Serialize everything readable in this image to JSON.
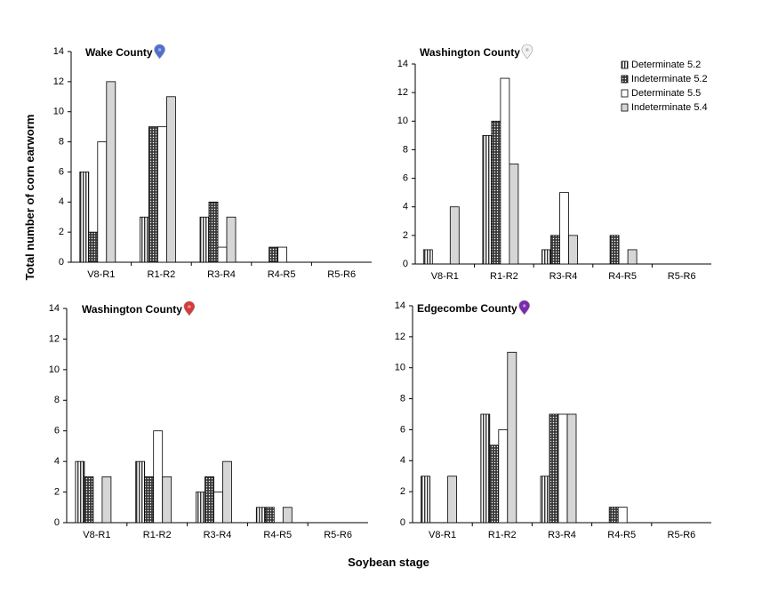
{
  "figure": {
    "ylabel": "Total number of corn earworm",
    "xlabel": "Soybean stage"
  },
  "colors": {
    "pin_blue": "#4f6fd0",
    "pin_white": "#f2f2f2",
    "pin_red": "#d83a3a",
    "pin_purple": "#7a2bb0"
  },
  "chart_data": [
    {
      "type": "bar",
      "title": "Wake County",
      "pin": "location-pin-icon-blue",
      "categories": [
        "V8-R1",
        "R1-R2",
        "R3-R4",
        "R4-R5",
        "R5-R6"
      ],
      "ylim": [
        0,
        14
      ],
      "yticks": [
        0,
        2,
        4,
        6,
        8,
        10,
        12,
        14
      ],
      "series": [
        {
          "name": "Determinate 5.2",
          "values": [
            6,
            3,
            3,
            0,
            0
          ]
        },
        {
          "name": "Indeterminate 5.2",
          "values": [
            2,
            9,
            4,
            1,
            0
          ]
        },
        {
          "name": "Determinate 5.5",
          "values": [
            8,
            9,
            1,
            1,
            0
          ]
        },
        {
          "name": "Indeterminate 5.4",
          "values": [
            12,
            11,
            3,
            0,
            0
          ]
        }
      ]
    },
    {
      "type": "bar",
      "title": "Washington County",
      "pin": "location-pin-icon-white",
      "categories": [
        "V8-R1",
        "R1-R2",
        "R3-R4",
        "R4-R5",
        "R5-R6"
      ],
      "ylim": [
        0,
        14
      ],
      "yticks": [
        0,
        2,
        4,
        6,
        8,
        10,
        12,
        14
      ],
      "legend": "top-right",
      "series": [
        {
          "name": "Determinate 5.2",
          "values": [
            1,
            9,
            1,
            0,
            0
          ]
        },
        {
          "name": "Indeterminate 5.2",
          "values": [
            0,
            10,
            2,
            2,
            0
          ]
        },
        {
          "name": "Determinate 5.5",
          "values": [
            0,
            13,
            5,
            0,
            0
          ]
        },
        {
          "name": "Indeterminate 5.4",
          "values": [
            4,
            7,
            2,
            1,
            0
          ]
        }
      ]
    },
    {
      "type": "bar",
      "title": "Washington County",
      "pin": "location-pin-icon-red",
      "categories": [
        "V8-R1",
        "R1-R2",
        "R3-R4",
        "R4-R5",
        "R5-R6"
      ],
      "ylim": [
        0,
        14
      ],
      "yticks": [
        0,
        2,
        4,
        6,
        8,
        10,
        12,
        14
      ],
      "series": [
        {
          "name": "Determinate 5.2",
          "values": [
            4,
            4,
            2,
            1,
            0
          ]
        },
        {
          "name": "Indeterminate 5.2",
          "values": [
            3,
            3,
            3,
            1,
            0
          ]
        },
        {
          "name": "Determinate 5.5",
          "values": [
            0,
            6,
            2,
            0,
            0
          ]
        },
        {
          "name": "Indeterminate 5.4",
          "values": [
            3,
            3,
            4,
            1,
            0
          ]
        }
      ]
    },
    {
      "type": "bar",
      "title": "Edgecombe County",
      "pin": "location-pin-icon-purple",
      "categories": [
        "V8-R1",
        "R1-R2",
        "R3-R4",
        "R4-R5",
        "R5-R6"
      ],
      "ylim": [
        0,
        14
      ],
      "yticks": [
        0,
        2,
        4,
        6,
        8,
        10,
        12,
        14
      ],
      "series": [
        {
          "name": "Determinate 5.2",
          "values": [
            3,
            7,
            3,
            0,
            0
          ]
        },
        {
          "name": "Indeterminate 5.2",
          "values": [
            0,
            5,
            7,
            1,
            0
          ]
        },
        {
          "name": "Determinate 5.5",
          "values": [
            0,
            6,
            7,
            1,
            0
          ]
        },
        {
          "name": "Indeterminate 5.4",
          "values": [
            3,
            11,
            7,
            0,
            0
          ]
        }
      ]
    }
  ]
}
